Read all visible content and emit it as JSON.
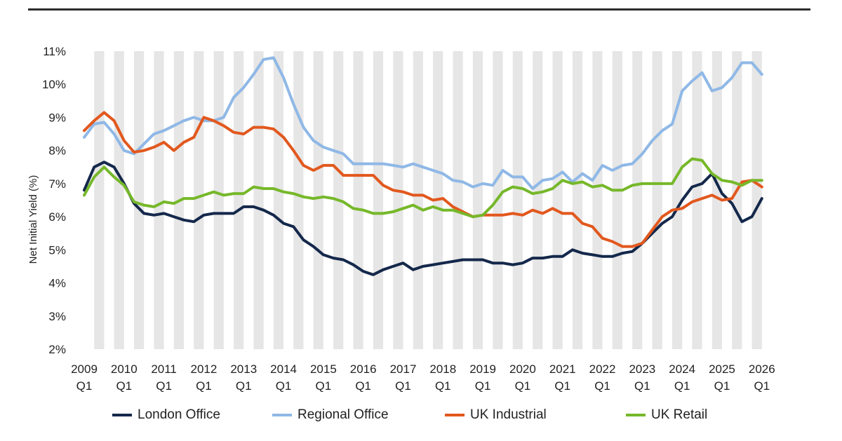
{
  "chart_data": {
    "type": "line",
    "title": "",
    "xlabel": "",
    "ylabel": "Net Initial Yield (%)",
    "ylim": [
      2,
      11
    ],
    "yticks": [
      "2%",
      "3%",
      "4%",
      "5%",
      "6%",
      "7%",
      "8%",
      "9%",
      "10%",
      "11%"
    ],
    "ytick_values": [
      2,
      3,
      4,
      5,
      6,
      7,
      8,
      9,
      10,
      11
    ],
    "xlim": [
      2009.0,
      2026.25
    ],
    "xticks": [
      {
        "year": "2009",
        "q": "Q1",
        "x": 2009
      },
      {
        "year": "2010",
        "q": "Q1",
        "x": 2010
      },
      {
        "year": "2011",
        "q": "Q1",
        "x": 2011
      },
      {
        "year": "2012",
        "q": "Q1",
        "x": 2012
      },
      {
        "year": "2013",
        "q": "Q1",
        "x": 2013
      },
      {
        "year": "2014",
        "q": "Q1",
        "x": 2014
      },
      {
        "year": "2015",
        "q": "Q1",
        "x": 2015
      },
      {
        "year": "2016",
        "q": "Q1",
        "x": 2016
      },
      {
        "year": "2017",
        "q": "Q1",
        "x": 2017
      },
      {
        "year": "2018",
        "q": "Q1",
        "x": 2018
      },
      {
        "year": "2019",
        "q": "Q1",
        "x": 2019
      },
      {
        "year": "2020",
        "q": "Q1",
        "x": 2020
      },
      {
        "year": "2021",
        "q": "Q1",
        "x": 2021
      },
      {
        "year": "2022",
        "q": "Q1",
        "x": 2022
      },
      {
        "year": "2023",
        "q": "Q1",
        "x": 2023
      },
      {
        "year": "2024",
        "q": "Q1",
        "x": 2024
      },
      {
        "year": "2025",
        "q": "Q1",
        "x": 2025
      },
      {
        "year": "2026",
        "q": "Q1",
        "x": 2026
      }
    ],
    "grid": "alternating vertical bands",
    "legend_position": "bottom",
    "series": [
      {
        "name": "London Office",
        "color": "#14284b",
        "points": [
          [
            2009.0,
            6.8
          ],
          [
            2009.25,
            7.5
          ],
          [
            2009.5,
            7.65
          ],
          [
            2009.75,
            7.5
          ],
          [
            2010.0,
            7.0
          ],
          [
            2010.25,
            6.4
          ],
          [
            2010.5,
            6.1
          ],
          [
            2010.75,
            6.05
          ],
          [
            2011.0,
            6.1
          ],
          [
            2011.25,
            6.0
          ],
          [
            2011.5,
            5.9
          ],
          [
            2011.75,
            5.85
          ],
          [
            2012.0,
            6.05
          ],
          [
            2012.25,
            6.1
          ],
          [
            2012.5,
            6.1
          ],
          [
            2012.75,
            6.1
          ],
          [
            2013.0,
            6.3
          ],
          [
            2013.25,
            6.3
          ],
          [
            2013.5,
            6.2
          ],
          [
            2013.75,
            6.05
          ],
          [
            2014.0,
            5.8
          ],
          [
            2014.25,
            5.7
          ],
          [
            2014.5,
            5.3
          ],
          [
            2014.75,
            5.1
          ],
          [
            2015.0,
            4.85
          ],
          [
            2015.25,
            4.75
          ],
          [
            2015.5,
            4.7
          ],
          [
            2015.75,
            4.55
          ],
          [
            2016.0,
            4.35
          ],
          [
            2016.25,
            4.25
          ],
          [
            2016.5,
            4.4
          ],
          [
            2016.75,
            4.5
          ],
          [
            2017.0,
            4.6
          ],
          [
            2017.25,
            4.4
          ],
          [
            2017.5,
            4.5
          ],
          [
            2017.75,
            4.55
          ],
          [
            2018.0,
            4.6
          ],
          [
            2018.25,
            4.65
          ],
          [
            2018.5,
            4.7
          ],
          [
            2018.75,
            4.7
          ],
          [
            2019.0,
            4.7
          ],
          [
            2019.25,
            4.6
          ],
          [
            2019.5,
            4.6
          ],
          [
            2019.75,
            4.55
          ],
          [
            2020.0,
            4.6
          ],
          [
            2020.25,
            4.75
          ],
          [
            2020.5,
            4.75
          ],
          [
            2020.75,
            4.8
          ],
          [
            2021.0,
            4.8
          ],
          [
            2021.25,
            5.0
          ],
          [
            2021.5,
            4.9
          ],
          [
            2021.75,
            4.85
          ],
          [
            2022.0,
            4.8
          ],
          [
            2022.25,
            4.8
          ],
          [
            2022.5,
            4.9
          ],
          [
            2022.75,
            4.95
          ],
          [
            2023.0,
            5.2
          ],
          [
            2023.25,
            5.5
          ],
          [
            2023.5,
            5.8
          ],
          [
            2023.75,
            6.0
          ],
          [
            2024.0,
            6.5
          ],
          [
            2024.25,
            6.9
          ],
          [
            2024.5,
            7.0
          ],
          [
            2024.75,
            7.3
          ],
          [
            2025.0,
            6.7
          ],
          [
            2025.25,
            6.4
          ],
          [
            2025.5,
            5.85
          ],
          [
            2025.75,
            6.0
          ],
          [
            2026.0,
            6.55
          ]
        ]
      },
      {
        "name": "Regional Office",
        "color": "#8fb8e6",
        "points": [
          [
            2009.0,
            8.4
          ],
          [
            2009.25,
            8.8
          ],
          [
            2009.5,
            8.85
          ],
          [
            2009.75,
            8.5
          ],
          [
            2010.0,
            8.0
          ],
          [
            2010.25,
            7.9
          ],
          [
            2010.5,
            8.2
          ],
          [
            2010.75,
            8.5
          ],
          [
            2011.0,
            8.6
          ],
          [
            2011.25,
            8.75
          ],
          [
            2011.5,
            8.9
          ],
          [
            2011.75,
            9.0
          ],
          [
            2012.0,
            8.9
          ],
          [
            2012.25,
            8.9
          ],
          [
            2012.5,
            9.0
          ],
          [
            2012.75,
            9.6
          ],
          [
            2013.0,
            9.9
          ],
          [
            2013.25,
            10.3
          ],
          [
            2013.5,
            10.75
          ],
          [
            2013.75,
            10.8
          ],
          [
            2014.0,
            10.2
          ],
          [
            2014.25,
            9.4
          ],
          [
            2014.5,
            8.7
          ],
          [
            2014.75,
            8.3
          ],
          [
            2015.0,
            8.1
          ],
          [
            2015.25,
            8.0
          ],
          [
            2015.5,
            7.9
          ],
          [
            2015.75,
            7.6
          ],
          [
            2016.0,
            7.6
          ],
          [
            2016.25,
            7.6
          ],
          [
            2016.5,
            7.6
          ],
          [
            2016.75,
            7.55
          ],
          [
            2017.0,
            7.5
          ],
          [
            2017.25,
            7.6
          ],
          [
            2017.5,
            7.5
          ],
          [
            2017.75,
            7.4
          ],
          [
            2018.0,
            7.3
          ],
          [
            2018.25,
            7.1
          ],
          [
            2018.5,
            7.05
          ],
          [
            2018.75,
            6.9
          ],
          [
            2019.0,
            7.0
          ],
          [
            2019.25,
            6.95
          ],
          [
            2019.5,
            7.4
          ],
          [
            2019.75,
            7.2
          ],
          [
            2020.0,
            7.2
          ],
          [
            2020.25,
            6.85
          ],
          [
            2020.5,
            7.1
          ],
          [
            2020.75,
            7.15
          ],
          [
            2021.0,
            7.35
          ],
          [
            2021.25,
            7.05
          ],
          [
            2021.5,
            7.3
          ],
          [
            2021.75,
            7.1
          ],
          [
            2022.0,
            7.55
          ],
          [
            2022.25,
            7.4
          ],
          [
            2022.5,
            7.55
          ],
          [
            2022.75,
            7.6
          ],
          [
            2023.0,
            7.9
          ],
          [
            2023.25,
            8.3
          ],
          [
            2023.5,
            8.6
          ],
          [
            2023.75,
            8.8
          ],
          [
            2024.0,
            9.8
          ],
          [
            2024.25,
            10.1
          ],
          [
            2024.5,
            10.35
          ],
          [
            2024.75,
            9.8
          ],
          [
            2025.0,
            9.9
          ],
          [
            2025.25,
            10.2
          ],
          [
            2025.5,
            10.65
          ],
          [
            2025.75,
            10.65
          ],
          [
            2026.0,
            10.3
          ]
        ]
      },
      {
        "name": "UK Industrial",
        "color": "#e2581e",
        "points": [
          [
            2009.0,
            8.6
          ],
          [
            2009.25,
            8.9
          ],
          [
            2009.5,
            9.15
          ],
          [
            2009.75,
            8.9
          ],
          [
            2010.0,
            8.3
          ],
          [
            2010.25,
            7.95
          ],
          [
            2010.5,
            8.0
          ],
          [
            2010.75,
            8.1
          ],
          [
            2011.0,
            8.25
          ],
          [
            2011.25,
            8.0
          ],
          [
            2011.5,
            8.25
          ],
          [
            2011.75,
            8.4
          ],
          [
            2012.0,
            9.0
          ],
          [
            2012.25,
            8.9
          ],
          [
            2012.5,
            8.75
          ],
          [
            2012.75,
            8.55
          ],
          [
            2013.0,
            8.5
          ],
          [
            2013.25,
            8.7
          ],
          [
            2013.5,
            8.7
          ],
          [
            2013.75,
            8.65
          ],
          [
            2014.0,
            8.4
          ],
          [
            2014.25,
            8.0
          ],
          [
            2014.5,
            7.55
          ],
          [
            2014.75,
            7.4
          ],
          [
            2015.0,
            7.55
          ],
          [
            2015.25,
            7.55
          ],
          [
            2015.5,
            7.25
          ],
          [
            2015.75,
            7.25
          ],
          [
            2016.0,
            7.25
          ],
          [
            2016.25,
            7.25
          ],
          [
            2016.5,
            6.95
          ],
          [
            2016.75,
            6.8
          ],
          [
            2017.0,
            6.75
          ],
          [
            2017.25,
            6.65
          ],
          [
            2017.5,
            6.65
          ],
          [
            2017.75,
            6.5
          ],
          [
            2018.0,
            6.55
          ],
          [
            2018.25,
            6.3
          ],
          [
            2018.5,
            6.15
          ],
          [
            2018.75,
            6.0
          ],
          [
            2019.0,
            6.05
          ],
          [
            2019.25,
            6.05
          ],
          [
            2019.5,
            6.05
          ],
          [
            2019.75,
            6.1
          ],
          [
            2020.0,
            6.05
          ],
          [
            2020.25,
            6.2
          ],
          [
            2020.5,
            6.1
          ],
          [
            2020.75,
            6.25
          ],
          [
            2021.0,
            6.1
          ],
          [
            2021.25,
            6.1
          ],
          [
            2021.5,
            5.8
          ],
          [
            2021.75,
            5.7
          ],
          [
            2022.0,
            5.35
          ],
          [
            2022.25,
            5.25
          ],
          [
            2022.5,
            5.1
          ],
          [
            2022.75,
            5.1
          ],
          [
            2023.0,
            5.2
          ],
          [
            2023.25,
            5.6
          ],
          [
            2023.5,
            6.0
          ],
          [
            2023.75,
            6.2
          ],
          [
            2024.0,
            6.25
          ],
          [
            2024.25,
            6.45
          ],
          [
            2024.5,
            6.55
          ],
          [
            2024.75,
            6.65
          ],
          [
            2025.0,
            6.5
          ],
          [
            2025.25,
            6.55
          ],
          [
            2025.5,
            7.05
          ],
          [
            2025.75,
            7.1
          ],
          [
            2026.0,
            6.9
          ]
        ]
      },
      {
        "name": "UK Retail",
        "color": "#76b82a",
        "points": [
          [
            2009.0,
            6.65
          ],
          [
            2009.25,
            7.2
          ],
          [
            2009.5,
            7.5
          ],
          [
            2009.75,
            7.2
          ],
          [
            2010.0,
            6.95
          ],
          [
            2010.25,
            6.45
          ],
          [
            2010.5,
            6.35
          ],
          [
            2010.75,
            6.3
          ],
          [
            2011.0,
            6.45
          ],
          [
            2011.25,
            6.4
          ],
          [
            2011.5,
            6.55
          ],
          [
            2011.75,
            6.55
          ],
          [
            2012.0,
            6.65
          ],
          [
            2012.25,
            6.75
          ],
          [
            2012.5,
            6.65
          ],
          [
            2012.75,
            6.7
          ],
          [
            2013.0,
            6.7
          ],
          [
            2013.25,
            6.9
          ],
          [
            2013.5,
            6.85
          ],
          [
            2013.75,
            6.85
          ],
          [
            2014.0,
            6.75
          ],
          [
            2014.25,
            6.7
          ],
          [
            2014.5,
            6.6
          ],
          [
            2014.75,
            6.55
          ],
          [
            2015.0,
            6.6
          ],
          [
            2015.25,
            6.55
          ],
          [
            2015.5,
            6.45
          ],
          [
            2015.75,
            6.25
          ],
          [
            2016.0,
            6.2
          ],
          [
            2016.25,
            6.1
          ],
          [
            2016.5,
            6.1
          ],
          [
            2016.75,
            6.15
          ],
          [
            2017.0,
            6.25
          ],
          [
            2017.25,
            6.35
          ],
          [
            2017.5,
            6.2
          ],
          [
            2017.75,
            6.3
          ],
          [
            2018.0,
            6.2
          ],
          [
            2018.25,
            6.2
          ],
          [
            2018.5,
            6.1
          ],
          [
            2018.75,
            6.0
          ],
          [
            2019.0,
            6.05
          ],
          [
            2019.25,
            6.35
          ],
          [
            2019.5,
            6.75
          ],
          [
            2019.75,
            6.9
          ],
          [
            2020.0,
            6.85
          ],
          [
            2020.25,
            6.7
          ],
          [
            2020.5,
            6.75
          ],
          [
            2020.75,
            6.85
          ],
          [
            2021.0,
            7.1
          ],
          [
            2021.25,
            7.0
          ],
          [
            2021.5,
            7.05
          ],
          [
            2021.75,
            6.9
          ],
          [
            2022.0,
            6.95
          ],
          [
            2022.25,
            6.8
          ],
          [
            2022.5,
            6.8
          ],
          [
            2022.75,
            6.95
          ],
          [
            2023.0,
            7.0
          ],
          [
            2023.25,
            7.0
          ],
          [
            2023.5,
            7.0
          ],
          [
            2023.75,
            7.0
          ],
          [
            2024.0,
            7.5
          ],
          [
            2024.25,
            7.75
          ],
          [
            2024.5,
            7.7
          ],
          [
            2024.75,
            7.3
          ],
          [
            2025.0,
            7.1
          ],
          [
            2025.25,
            7.05
          ],
          [
            2025.5,
            6.95
          ],
          [
            2025.75,
            7.1
          ],
          [
            2026.0,
            7.1
          ]
        ]
      }
    ]
  }
}
